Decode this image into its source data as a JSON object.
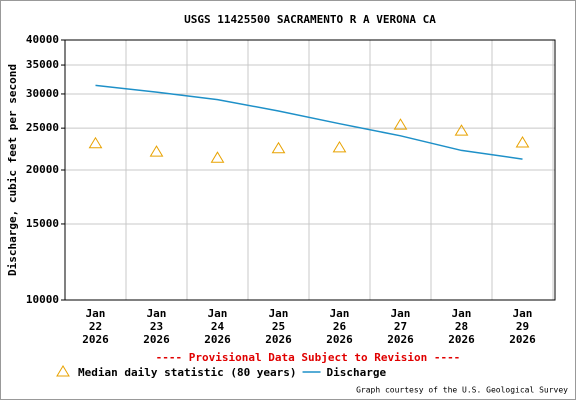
{
  "chart_data": {
    "type": "line",
    "title": "USGS 11425500 SACRAMENTO R A VERONA CA",
    "y_label": "Discharge, cubic feet per second",
    "annotation": "---- Provisional Data Subject to Revision ----",
    "credit": "Graph courtesy of the U.S. Geological Survey",
    "categories": [
      "Jan 22 2026",
      "Jan 23 2026",
      "Jan 24 2026",
      "Jan 25 2026",
      "Jan 26 2026",
      "Jan 27 2026",
      "Jan 28 2026",
      "Jan 29 2026"
    ],
    "series": [
      {
        "name": "Median daily statistic (80 years)",
        "color": "#e8a200",
        "marker": "triangle",
        "values": [
          23000,
          22000,
          21300,
          22400,
          22500,
          25400,
          24600,
          23100
        ]
      },
      {
        "name": "Discharge",
        "color": "#1e90c8",
        "marker": "none",
        "values": [
          31400,
          30300,
          29100,
          27400,
          25600,
          24000,
          22200,
          21200
        ]
      }
    ],
    "ylim": [
      10000,
      40000
    ],
    "yticks": [
      10000,
      15000,
      20000,
      25000,
      30000,
      35000,
      40000
    ],
    "log_y": true,
    "grid": true,
    "legend": "bottom"
  }
}
